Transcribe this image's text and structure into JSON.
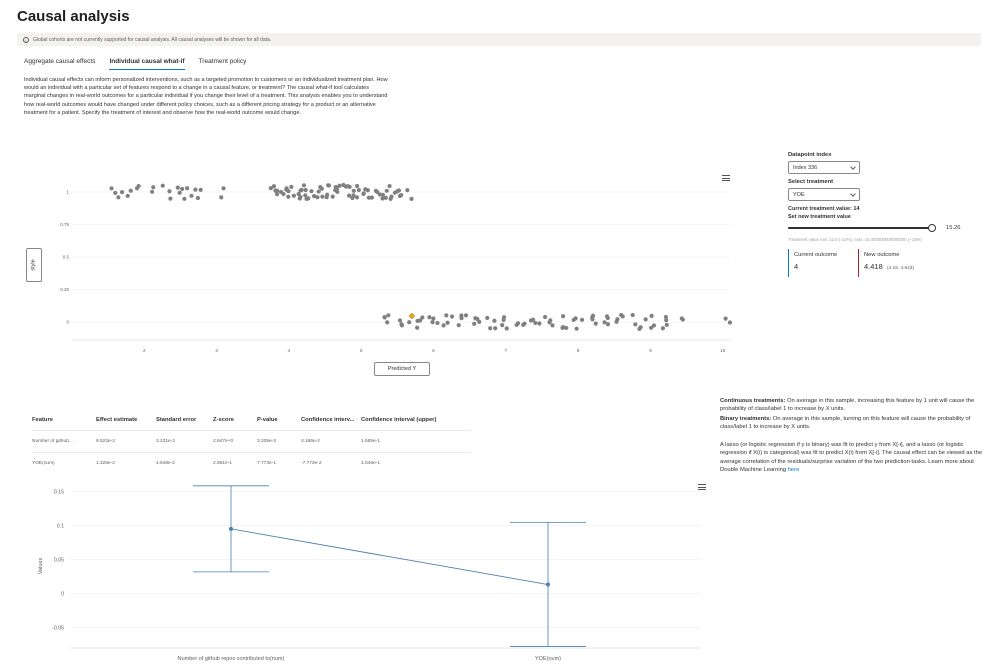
{
  "page_title": "Causal analysis",
  "info_bar": {
    "icon": "info-icon",
    "text": "Global cohorts are not currently supported for causal analysis. All causal analyses will be shown for all data."
  },
  "tabs": [
    {
      "label": "Aggregate causal effects",
      "active": false
    },
    {
      "label": "Individual causal what-if",
      "active": true
    },
    {
      "label": "Treatment policy",
      "active": false
    }
  ],
  "description": "Individual causal effects can inform personalized interventions, such as a targeted promotion to customers or an individualized treatment plan. How would an individual with a particular set of features respond to a change in a causal feature, or treatment? The causal what-if tool calculates marginal changes in real-world outcomes for a particular individual if you change their level of a treatment. This analysis enables you to understand how real-world outcomes would have changed under different policy choices, such as a different pricing strategy for a product or an alternative treatment for a patient. Specify the treatment of interest and observe how the real-world outcome would change.",
  "scatter": {
    "y_axis_selector": "style",
    "x_axis_selector": "Predicted Y",
    "menu_icon": "hamburger-menu-icon",
    "y_ticks": [
      "1",
      "0.75",
      "0.5",
      "0.25",
      "0"
    ],
    "x_ticks": [
      "2",
      "3",
      "4",
      "5",
      "6",
      "7",
      "8",
      "9",
      "10"
    ]
  },
  "chart_data": [
    {
      "type": "scatter",
      "ylabel": "style",
      "xlabel": "Predicted Y",
      "xlim": [
        1.0,
        10.1
      ],
      "ylim": [
        0,
        1
      ],
      "y_ticks": [
        0,
        0.25,
        0.5,
        0.75,
        1
      ],
      "x_ticks": [
        2,
        3,
        4,
        5,
        6,
        7,
        8,
        9,
        10
      ],
      "series": [
        {
          "color": "#808080",
          "points": [
            {
              "x": 1.6,
              "y": 1
            },
            {
              "x": 1.7,
              "y": 1
            },
            {
              "x": 1.8,
              "y": 1
            },
            {
              "x": 1.9,
              "y": 1
            },
            {
              "x": 2.1,
              "y": 1
            },
            {
              "x": 2.3,
              "y": 1
            },
            {
              "x": 2.4,
              "y": 1
            },
            {
              "x": 2.5,
              "y": 1
            },
            {
              "x": 2.6,
              "y": 1
            },
            {
              "x": 2.7,
              "y": 1
            },
            {
              "x": 2.8,
              "y": 1
            },
            {
              "x": 3.1,
              "y": 1
            },
            {
              "x": 3.8,
              "y": 1
            },
            {
              "x": 3.9,
              "y": 1
            },
            {
              "x": 4.0,
              "y": 1
            },
            {
              "x": 4.1,
              "y": 1
            },
            {
              "x": 4.2,
              "y": 1
            },
            {
              "x": 4.3,
              "y": 1
            },
            {
              "x": 4.4,
              "y": 1
            },
            {
              "x": 4.5,
              "y": 1
            },
            {
              "x": 4.6,
              "y": 1
            },
            {
              "x": 4.7,
              "y": 1
            },
            {
              "x": 4.8,
              "y": 1
            },
            {
              "x": 4.9,
              "y": 1
            },
            {
              "x": 5.0,
              "y": 1
            },
            {
              "x": 5.1,
              "y": 1
            },
            {
              "x": 5.2,
              "y": 1
            },
            {
              "x": 5.3,
              "y": 1
            },
            {
              "x": 5.4,
              "y": 1
            },
            {
              "x": 5.5,
              "y": 1
            },
            {
              "x": 5.7,
              "y": 1
            },
            {
              "x": 5.3,
              "y": 0
            },
            {
              "x": 5.4,
              "y": 0
            },
            {
              "x": 5.6,
              "y": 0
            },
            {
              "x": 5.8,
              "y": 0
            },
            {
              "x": 6.0,
              "y": 0
            },
            {
              "x": 6.2,
              "y": 0
            },
            {
              "x": 6.4,
              "y": 0
            },
            {
              "x": 6.6,
              "y": 0
            },
            {
              "x": 6.8,
              "y": 0
            },
            {
              "x": 7.0,
              "y": 0
            },
            {
              "x": 7.2,
              "y": 0
            },
            {
              "x": 7.4,
              "y": 0
            },
            {
              "x": 7.6,
              "y": 0
            },
            {
              "x": 7.8,
              "y": 0
            },
            {
              "x": 8.0,
              "y": 0
            },
            {
              "x": 8.2,
              "y": 0
            },
            {
              "x": 8.4,
              "y": 0
            },
            {
              "x": 8.6,
              "y": 0
            },
            {
              "x": 8.8,
              "y": 0
            },
            {
              "x": 9.0,
              "y": 0
            },
            {
              "x": 9.2,
              "y": 0
            },
            {
              "x": 9.5,
              "y": 0
            },
            {
              "x": 10.1,
              "y": 0
            }
          ]
        },
        {
          "color": "#e8a317",
          "marker": "diamond",
          "points": [
            {
              "x": 5.7,
              "y": 0
            }
          ]
        }
      ]
    },
    {
      "type": "errorbar",
      "ylabel": "Values",
      "categories": [
        "Number of github repos contributed to(num)",
        "YOE(num)"
      ],
      "values": [
        0.0952,
        0.0133
      ],
      "lower": [
        0.0319,
        -0.0777
      ],
      "upper": [
        0.1585,
        0.1046
      ],
      "ylim": [
        -0.08,
        0.17
      ],
      "y_ticks": [
        "0.15",
        "0.1",
        "0.05",
        "0",
        "-0.05"
      ],
      "color": "#4a7fb5"
    }
  ],
  "control_panel": {
    "datapoint_label": "Datapoint index",
    "datapoint_value": "Index 336",
    "treatment_label": "Select treatment",
    "treatment_value": "YOE",
    "current_treatment_text": "Current treatment value: 14",
    "new_treatment_label": "Set new treatment value",
    "slider_value": "15.26",
    "slider_fraction": 0.97,
    "range_hint": "Treatment value min: 12.6 (-10%); max: 15.400000000000000 (+10%)",
    "current_outcome_label": "Current outcome",
    "current_outcome_value": "4",
    "new_outcome_label": "New outcome",
    "new_outcome_value": "4.418",
    "new_outcome_ci": "(4.19, 4.643)"
  },
  "table": {
    "headers": [
      "Feature",
      "Effect estimate",
      "Standard error",
      "Z-score",
      "P-value",
      "Confidence interv...",
      "Confidence interval (upper)"
    ],
    "rows": [
      [
        "Number of github...",
        "9.522e-2",
        "3.231e-2",
        "2.947e+0",
        "3.205e-3",
        "3.186e-2",
        "1.585e-1"
      ],
      [
        "YOE(num)",
        "1.328e-2",
        "4.648e-2",
        "2.861e-1",
        "7.773e-1",
        "-7.773e-2",
        "1.046e-1"
      ]
    ]
  },
  "notes": {
    "continuous_bold": "Continuous treatments:",
    "continuous_text": "On average in this sample, increasing this feature by 1 unit will cause the probability of class/label 1 to increase by X units.",
    "binary_bold": "Binary treatments:",
    "binary_text": "On average in this sample, turning on this feature will cause the probability of class/label 1 to increase by X units.",
    "lasso_text": "A lasso (or logistic regression if y is binary) was fit to predict y from X[-i], and a lasso (or logistic regression if X(i) is categorical) was fit to predict X(i) from X[-i]. The causal effect can be viewed as the average correlation of the residuals/surprise variation of the two prediction tasks. Learn more about Double Machine Learning",
    "link_text": "here"
  },
  "error_chart": {
    "menu_icon": "hamburger-menu-icon"
  }
}
